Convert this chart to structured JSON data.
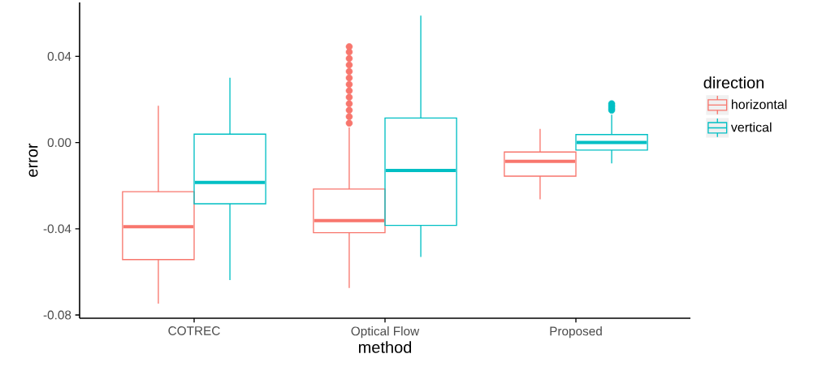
{
  "chart_data": {
    "type": "box",
    "xlabel": "method",
    "ylabel": "error",
    "legend_title": "direction",
    "legend": "right",
    "grid": false,
    "categories": [
      "COTREC",
      "Optical Flow",
      "Proposed"
    ],
    "ylim": [
      -0.0815,
      0.065
    ],
    "yticks": [
      {
        "value": -0.08,
        "label": "-0.08"
      },
      {
        "value": -0.04,
        "label": "-0.04"
      },
      {
        "value": 0,
        "label": "0.00"
      },
      {
        "value": 0.04,
        "label": "0.04"
      }
    ],
    "series": [
      {
        "name": "horizontal",
        "color": "#f8766d",
        "boxes": [
          {
            "low": -0.0747,
            "q1": -0.0543,
            "median": -0.039,
            "q3": -0.0228,
            "high": 0.0171
          },
          {
            "low": -0.0675,
            "q1": -0.0418,
            "median": -0.0362,
            "q3": -0.0216,
            "high": 0.007,
            "outliers": [
              0.009,
              0.012,
              0.015,
              0.018,
              0.021,
              0.024,
              0.027,
              0.03,
              0.033,
              0.036,
              0.039,
              0.042,
              0.0445
            ]
          },
          {
            "low": -0.0263,
            "q1": -0.0156,
            "median": -0.0087,
            "q3": -0.0044,
            "high": 0.0063
          }
        ]
      },
      {
        "name": "vertical",
        "color": "#00bfc4",
        "boxes": [
          {
            "low": -0.0638,
            "q1": -0.0284,
            "median": -0.0185,
            "q3": 0.0039,
            "high": 0.0301
          },
          {
            "low": -0.0531,
            "q1": -0.0384,
            "median": -0.013,
            "q3": 0.0114,
            "high": 0.0589
          },
          {
            "low": -0.0097,
            "q1": -0.0035,
            "median": 0.0,
            "q3": 0.0037,
            "high": 0.0129,
            "outliers": [
              0.015,
              0.016,
              0.017,
              0.018
            ]
          }
        ]
      }
    ]
  }
}
